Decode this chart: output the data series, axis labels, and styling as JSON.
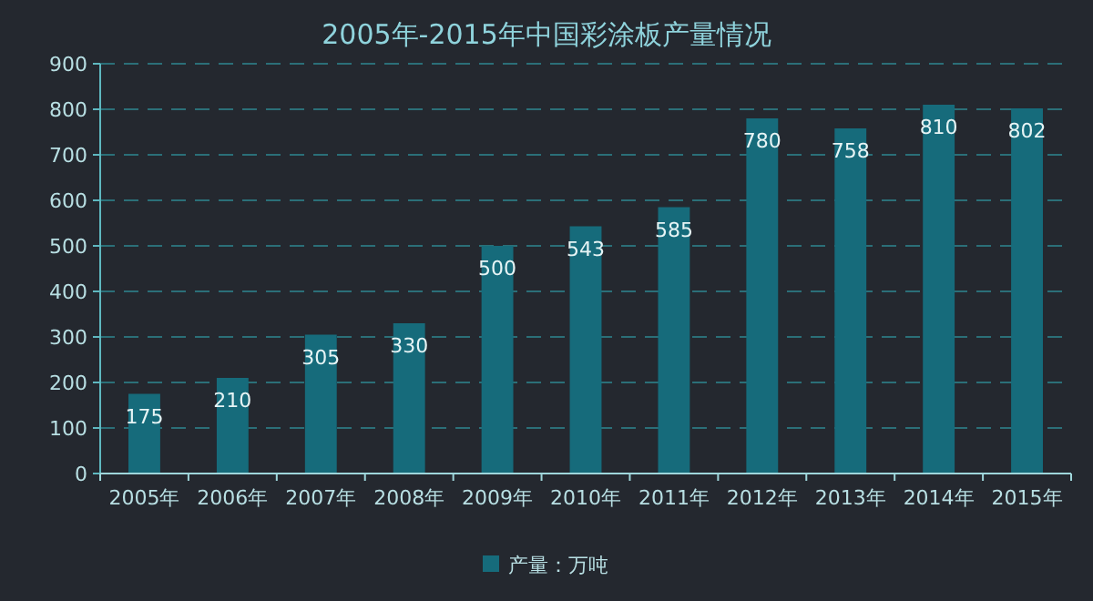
{
  "chart_data": {
    "type": "bar",
    "title": "2005年-2015年中国彩涂板产量情况",
    "categories": [
      "2005年",
      "2006年",
      "2007年",
      "2008年",
      "2009年",
      "2010年",
      "2011年",
      "2012年",
      "2013年",
      "2014年",
      "2015年"
    ],
    "series": [
      {
        "name": "产量：万吨",
        "color": "#166b7b",
        "values": [
          175,
          210,
          305,
          330,
          500,
          543,
          585,
          780,
          758,
          810,
          802
        ]
      }
    ],
    "ylim": [
      0,
      900
    ],
    "yticks": [
      0,
      100,
      200,
      300,
      400,
      500,
      600,
      700,
      800,
      900
    ],
    "grid": "y",
    "legend": "bottom",
    "data_labels": true
  }
}
